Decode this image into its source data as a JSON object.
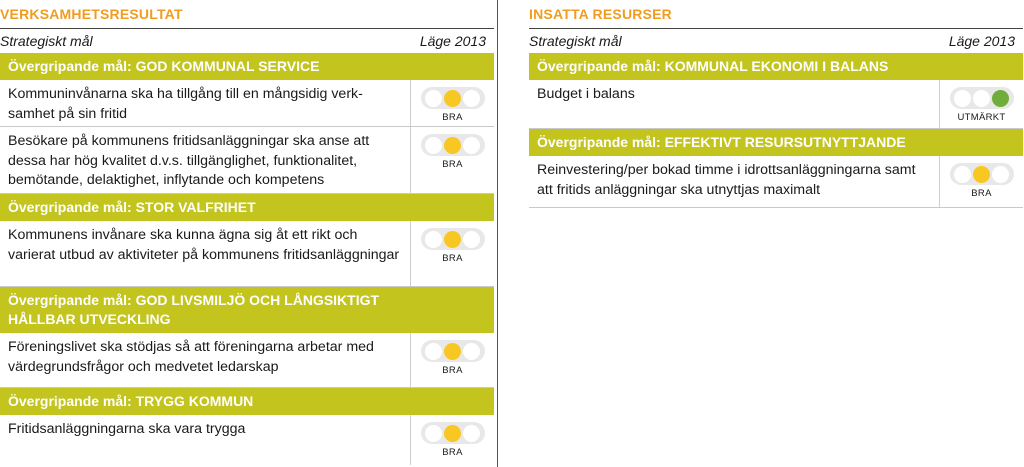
{
  "left": {
    "title": "VERKSAMHETSRESULTAT",
    "col_goal": "Strategiskt mål",
    "col_status": "Läge 2013",
    "groups": [
      {
        "goal": "Övergripande mål: GOD KOMMUNAL SERVICE",
        "rows": [
          {
            "text": "Kommuninvånarna ska ha tillgång till en mångsidig verk-\nsamhet på sin fritid",
            "status": "BRA",
            "light": "yellow"
          },
          {
            "text": "Besökare på kommunens fritidsanläggningar ska anse att dessa har hög kvalitet d.v.s. tillgänglighet, funktionalitet, bemötande, delaktighet, inflytande och kompetens",
            "status": "BRA",
            "light": "yellow"
          }
        ]
      },
      {
        "goal": "Övergripande mål: STOR VALFRIHET",
        "rows": [
          {
            "text": "Kommunens invånare ska kunna ägna sig åt ett rikt och varierat utbud av aktiviteter på kommunens fritidsanläggningar",
            "status": "BRA",
            "light": "yellow"
          }
        ]
      },
      {
        "goal": "Övergripande mål: GOD LIVSMILJÖ OCH LÅNGSIKTIGT HÅLLBAR UTVECKLING",
        "rows": [
          {
            "text": "Föreningslivet ska stödjas så att föreningarna arbetar med värdegrundsfrågor och medvetet ledarskap",
            "status": "BRA",
            "light": "yellow"
          }
        ]
      },
      {
        "goal": "Övergripande mål: TRYGG KOMMUN",
        "rows": [
          {
            "text": "Fritidsanläggningarna ska vara trygga",
            "status": "BRA",
            "light": "yellow"
          }
        ]
      }
    ]
  },
  "right": {
    "title": "INSATTA RESURSER",
    "col_goal": "Strategiskt mål",
    "col_status": "Läge 2013",
    "groups": [
      {
        "goal": "Övergripande mål: KOMMUNAL EKONOMI I BALANS",
        "rows": [
          {
            "text": "Budget i balans",
            "status": "UTMÄRKT",
            "light": "green"
          }
        ]
      },
      {
        "goal": "Övergripande mål: EFFEKTIVT RESURSUTNYTTJANDE",
        "rows": [
          {
            "text": "Reinvestering/per bokad timme i idrottsanläggningarna samt att fritids anläggningar ska utnyttjas maximalt",
            "status": "BRA",
            "light": "yellow"
          }
        ]
      }
    ]
  },
  "colors": {
    "accent": "#f29c1f",
    "goal_bar": "#c3c41d",
    "yellow": "#f8c722",
    "green": "#6fae3a"
  }
}
